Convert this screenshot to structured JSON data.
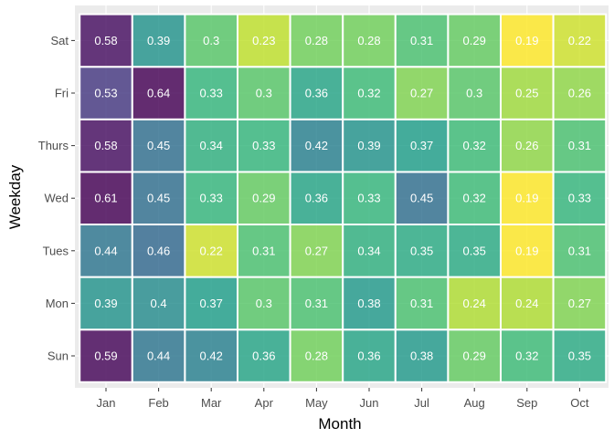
{
  "chart_data": {
    "type": "heatmap",
    "xlabel": "Month",
    "ylabel": "Weekday",
    "x": [
      "Jan",
      "Feb",
      "Mar",
      "Apr",
      "May",
      "Jun",
      "Jul",
      "Aug",
      "Sep",
      "Oct"
    ],
    "y": [
      "Sun",
      "Mon",
      "Tues",
      "Wed",
      "Thurs",
      "Fri",
      "Sat"
    ],
    "values": [
      [
        0.59,
        0.44,
        0.42,
        0.36,
        0.28,
        0.36,
        0.38,
        0.29,
        0.32,
        0.35
      ],
      [
        0.39,
        0.4,
        0.37,
        0.3,
        0.31,
        0.38,
        0.31,
        0.24,
        0.24,
        0.27
      ],
      [
        0.44,
        0.46,
        0.22,
        0.31,
        0.27,
        0.34,
        0.35,
        0.35,
        0.19,
        0.31
      ],
      [
        0.61,
        0.45,
        0.33,
        0.29,
        0.36,
        0.33,
        0.45,
        0.32,
        0.19,
        0.33
      ],
      [
        0.58,
        0.45,
        0.34,
        0.33,
        0.42,
        0.39,
        0.37,
        0.32,
        0.26,
        0.31
      ],
      [
        0.53,
        0.64,
        0.33,
        0.3,
        0.36,
        0.32,
        0.27,
        0.3,
        0.25,
        0.26
      ],
      [
        0.58,
        0.39,
        0.3,
        0.23,
        0.28,
        0.28,
        0.31,
        0.29,
        0.19,
        0.22
      ]
    ],
    "cell_labels": [
      [
        "0.59",
        "0.44",
        "0.42",
        "0.36",
        "0.28",
        "0.36",
        "0.38",
        "0.29",
        "0.32",
        "0.35"
      ],
      [
        "0.39",
        "0.4",
        "0.37",
        "0.3",
        "0.31",
        "0.38",
        "0.31",
        "0.24",
        "0.24",
        "0.27"
      ],
      [
        "0.44",
        "0.46",
        "0.22",
        "0.31",
        "0.27",
        "0.34",
        "0.35",
        "0.35",
        "0.19",
        "0.31"
      ],
      [
        "0.61",
        "0.45",
        "0.33",
        "0.29",
        "0.36",
        "0.33",
        "0.45",
        "0.32",
        "0.19",
        "0.33"
      ],
      [
        "0.58",
        "0.45",
        "0.34",
        "0.33",
        "0.42",
        "0.39",
        "0.37",
        "0.32",
        "0.26",
        "0.31"
      ],
      [
        "0.53",
        "0.64",
        "0.33",
        "0.3",
        "0.36",
        "0.32",
        "0.27",
        "0.3",
        "0.25",
        "0.26"
      ],
      [
        "0.58",
        "0.39",
        "0.3",
        "0.23",
        "0.28",
        "0.28",
        "0.31",
        "0.29",
        "0.19",
        "0.22"
      ]
    ],
    "color_scale": "viridis-reversed",
    "value_range": [
      0.19,
      0.64
    ],
    "grid": true,
    "panel_background": "#ebebeb",
    "legend": "none"
  }
}
